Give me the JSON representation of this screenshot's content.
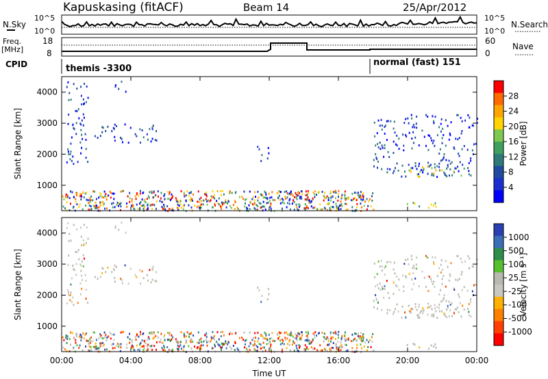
{
  "header": {
    "site": "Kapuskasing (fitACF)",
    "beam": "Beam 14",
    "date": "25/Apr/2012"
  },
  "summary_panel": {
    "nsky_label": "N.Sky",
    "nsearch_label": "N.Search",
    "nsky_ticks": [
      "10^5",
      "10^0"
    ],
    "nsearch_ticks": [
      "10^5",
      "10^0"
    ],
    "freq_label_line1": "Freq.",
    "freq_label_line2": "[MHz]",
    "freq_ticks": [
      "18",
      "8"
    ],
    "nave_label": "Nave",
    "nave_ticks": [
      "60",
      "0"
    ],
    "cpid_label": "CPID",
    "cpid_segments": [
      {
        "label": "themis -3300",
        "start_hour": 0
      },
      {
        "label": "normal (fast) 151",
        "start_hour": 18
      }
    ]
  },
  "chart_data": [
    {
      "type": "heatmap",
      "name": "power",
      "ylabel": "Slant Range [km]",
      "yticks": [
        "4000",
        "3000",
        "2000",
        "1000"
      ],
      "ylim": [
        180,
        4500
      ],
      "xlim_hours": [
        0,
        24
      ],
      "colorbar_label": "Power [dB]",
      "colorbar_ticks": [
        "28",
        "24",
        "20",
        "16",
        "12",
        "8",
        "4"
      ],
      "colorbar_colors": [
        "#ff0000",
        "#ff6a00",
        "#ffa500",
        "#ffd400",
        "#7ec850",
        "#3fa060",
        "#2f7a78",
        "#1f4aa0",
        "#1a2fd0",
        "#0000ff"
      ],
      "regions": [
        {
          "t": [
            0.2,
            1.5
          ],
          "r": [
            1700,
            4400
          ],
          "level": "low"
        },
        {
          "t": [
            1.8,
            5.6
          ],
          "r": [
            2400,
            3000
          ],
          "level": "low"
        },
        {
          "t": [
            3.0,
            3.8
          ],
          "r": [
            4000,
            4400
          ],
          "level": "low"
        },
        {
          "t": [
            0,
            18
          ],
          "r": [
            200,
            850
          ],
          "level": "mixed"
        },
        {
          "t": [
            11.2,
            12.0
          ],
          "r": [
            1800,
            2300
          ],
          "level": "low"
        },
        {
          "t": [
            18.0,
            24
          ],
          "r": [
            1300,
            3300
          ],
          "level": "low"
        },
        {
          "t": [
            19.8,
            23.8
          ],
          "r": [
            1300,
            1650
          ],
          "level": "high"
        },
        {
          "t": [
            19.2,
            21.8
          ],
          "r": [
            300,
            500
          ],
          "level": "high"
        }
      ]
    },
    {
      "type": "heatmap",
      "name": "velocity",
      "ylabel": "Slant Range [km]",
      "yticks": [
        "4000",
        "3000",
        "2000",
        "1000"
      ],
      "ylim": [
        180,
        4500
      ],
      "xlim_hours": [
        0,
        24
      ],
      "colorbar_label": "Velocity [m s⁻¹]",
      "colorbar_ticks": [
        "1000",
        "500",
        "100",
        "25",
        "-25",
        "-100",
        "-500",
        "-1000"
      ],
      "colorbar_colors": [
        "#2a3fb0",
        "#3a6fb8",
        "#2f8f4a",
        "#58c030",
        "#b9b9b0",
        "#c8c8c0",
        "#ffb000",
        "#ff8000",
        "#ff4000",
        "#ff0000"
      ],
      "xlabel": "Time UT",
      "xticks": [
        "00:00",
        "04:00",
        "08:00",
        "12:00",
        "16:00",
        "20:00",
        "00:00"
      ]
    }
  ]
}
